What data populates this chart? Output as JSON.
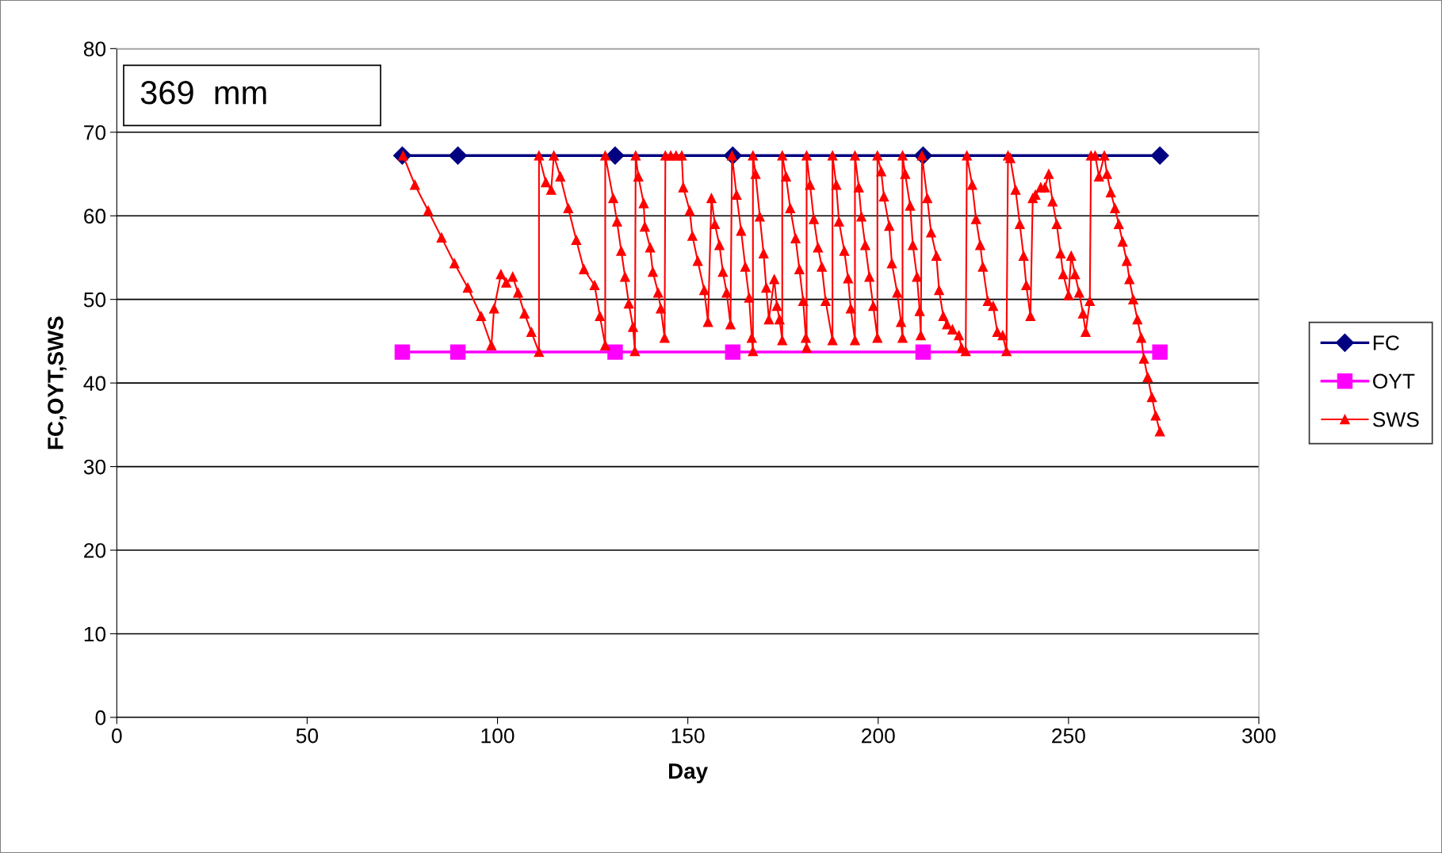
{
  "chart_data": {
    "type": "line",
    "xlabel": "Day",
    "ylabel": "FC,OYT,SWS",
    "annotations": [
      "369  mm"
    ],
    "xlim": [
      0,
      300
    ],
    "xticks": [
      0,
      50,
      100,
      150,
      200,
      250,
      300
    ],
    "ylim": [
      0,
      80
    ],
    "yticks": [
      0,
      10,
      20,
      30,
      40,
      50,
      60,
      70,
      80
    ],
    "grid": "y",
    "legend": "right",
    "line_style": "solid",
    "series": [
      {
        "name": "FC",
        "color": "#000080",
        "marker": "diamond",
        "x": [
          75,
          89.6,
          130.9,
          161.8,
          211.8,
          274
        ],
        "values": [
          67.2,
          67.2,
          67.2,
          67.2,
          67.2,
          67.2
        ]
      },
      {
        "name": "OYT",
        "color": "#ff00ff",
        "marker": "square",
        "x": [
          75,
          89.6,
          130.9,
          161.8,
          211.8,
          274
        ],
        "values": [
          43.7,
          43.7,
          43.7,
          43.7,
          43.7,
          43.7
        ]
      },
      {
        "name": "SWS",
        "color": "#ff0000",
        "marker": "triangle",
        "x": [
          75.2,
          78.3,
          81.8,
          85.3,
          88.7,
          92.2,
          95.7,
          98.4,
          99.1,
          100.9,
          102.3,
          104,
          105.4,
          107.1,
          108.9,
          110.9,
          110.9,
          112.7,
          114.1,
          114.8,
          116.5,
          118.6,
          120.7,
          122.7,
          125.5,
          126.9,
          128.3,
          128.3,
          130.4,
          131.4,
          132.5,
          133.5,
          134.5,
          135.6,
          136.1,
          136.3,
          137,
          138.4,
          138.7,
          140.1,
          140.8,
          142.2,
          142.9,
          143.9,
          144.1,
          145.5,
          146.9,
          148.4,
          148.8,
          150.5,
          151.2,
          152.6,
          154.3,
          155.3,
          156.2,
          157.1,
          158.3,
          159.2,
          160.2,
          161.2,
          161.6,
          162.8,
          164,
          165.1,
          166.1,
          166.8,
          167.1,
          167.1,
          167.8,
          168.9,
          169.9,
          170.6,
          171.3,
          172.7,
          173.4,
          174.1,
          174.8,
          174.8,
          175.8,
          176.9,
          178.3,
          179.3,
          180.3,
          181,
          181.2,
          181.2,
          182.1,
          183.1,
          184.2,
          185.2,
          186.2,
          188,
          188,
          189,
          189.7,
          191.1,
          192.1,
          192.8,
          193.9,
          193.9,
          194.9,
          195.6,
          196.6,
          197.7,
          198.7,
          199.8,
          199.8,
          200.8,
          201.5,
          202.9,
          203.6,
          205,
          206,
          206.4,
          206.4,
          207.1,
          208.4,
          209.1,
          210.2,
          210.9,
          211.2,
          211.5,
          212.9,
          213.9,
          215.3,
          216,
          217.1,
          218.1,
          219.5,
          221.2,
          221.9,
          223,
          223.3,
          224.7,
          225.7,
          226.8,
          227.5,
          228.8,
          230.2,
          231.3,
          232.7,
          233.7,
          234.1,
          234.7,
          236.1,
          237.2,
          238.2,
          238.9,
          240,
          240.6,
          241.3,
          242.7,
          243.8,
          244.8,
          245.8,
          246.9,
          247.9,
          248.6,
          250,
          250.7,
          251.7,
          252.8,
          253.8,
          254.5,
          255.6,
          255.9,
          257,
          258,
          259.4,
          260.1,
          261.1,
          262.2,
          263.2,
          264.2,
          265.3,
          266,
          267,
          268.1,
          269.1,
          269.8,
          270.8,
          271.9,
          272.9,
          274
        ],
        "values": [
          67.2,
          63.7,
          60.6,
          57.4,
          54.3,
          51.4,
          48,
          44.5,
          48.9,
          53,
          52,
          52.7,
          50.8,
          48.3,
          46.1,
          43.7,
          67.2,
          64,
          63.1,
          67.2,
          64.7,
          60.9,
          57.1,
          53.6,
          51.7,
          48,
          44.5,
          67.2,
          62.1,
          59.3,
          55.8,
          52.7,
          49.5,
          46.7,
          43.8,
          67.2,
          64.7,
          61.5,
          58.7,
          56.2,
          53.3,
          50.8,
          48.9,
          45.4,
          67.2,
          67.2,
          67.2,
          67.2,
          63.4,
          60.6,
          57.6,
          54.6,
          51.1,
          47.3,
          62.1,
          59,
          56.5,
          53.3,
          50.8,
          47,
          67.2,
          62.5,
          58.2,
          53.9,
          50.2,
          45.4,
          43.8,
          67.2,
          65,
          59.9,
          55.5,
          51.4,
          47.6,
          52.4,
          49.2,
          47.6,
          45.1,
          67.2,
          64.7,
          60.9,
          57.3,
          53.6,
          49.8,
          45.4,
          44.2,
          67.2,
          63.7,
          59.6,
          56.2,
          53.9,
          49.8,
          45.1,
          67.2,
          63.7,
          59.3,
          55.8,
          52.5,
          48.9,
          45.1,
          67.2,
          63.4,
          59.9,
          56.5,
          52.7,
          49.2,
          45.4,
          67.2,
          65.3,
          62.3,
          58.8,
          54.3,
          50.8,
          47.3,
          45.4,
          67.2,
          65,
          61.2,
          56.5,
          52.7,
          48.6,
          45.7,
          67.2,
          62.1,
          58,
          55.2,
          51.1,
          48,
          47,
          46.4,
          45.7,
          44.2,
          43.8,
          67.2,
          63.7,
          59.6,
          56.5,
          53.9,
          49.8,
          49.2,
          46.1,
          45.7,
          43.8,
          67.2,
          66.9,
          63.1,
          59,
          55.2,
          51.7,
          48,
          62.1,
          62.5,
          63.4,
          63.4,
          65,
          61.7,
          59,
          55.5,
          53,
          50.5,
          55.2,
          53,
          50.8,
          48.3,
          46.1,
          49.8,
          67.2,
          67.2,
          64.7,
          67.2,
          65,
          62.8,
          60.9,
          59,
          56.9,
          54.6,
          52.4,
          50,
          47.6,
          45.4,
          42.9,
          40.7,
          38.3,
          36.1,
          34.2
        ]
      }
    ]
  }
}
